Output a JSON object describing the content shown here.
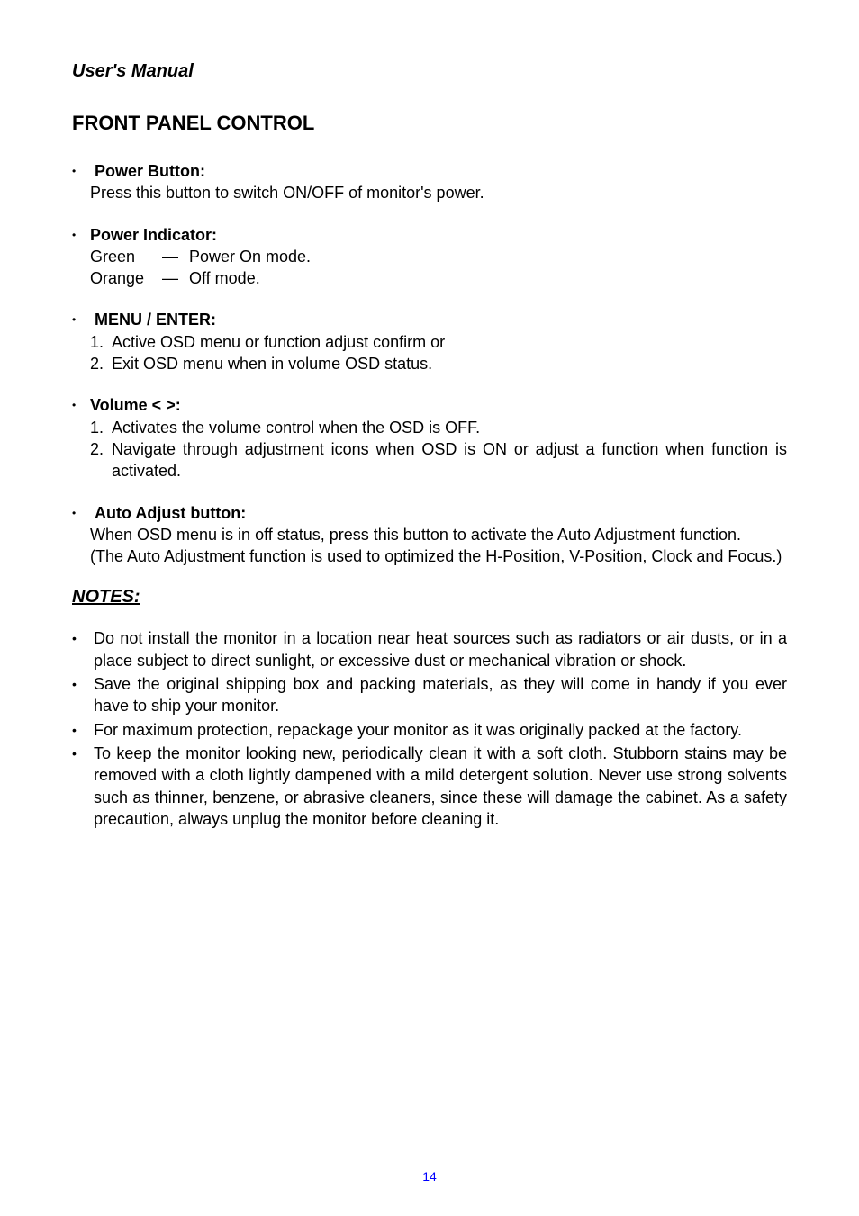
{
  "header": {
    "title": "User's Manual"
  },
  "section_title": "FRONT PANEL CONTROL",
  "items": [
    {
      "title": "Power Button:",
      "body_lines": [
        "Press this button to switch ON/OFF of monitor's power."
      ]
    },
    {
      "title": "Power Indicator:",
      "rows": [
        {
          "key": "Green",
          "dash": "—",
          "val": "Power On mode."
        },
        {
          "key": "Orange",
          "dash": "—",
          "val": "Off mode."
        }
      ]
    },
    {
      "title": "MENU / ENTER:",
      "numbered": [
        "Active OSD menu or function adjust confirm or",
        "Exit OSD menu when in volume OSD status."
      ]
    },
    {
      "title": "Volume < >:",
      "numbered": [
        "Activates the volume control when the OSD is OFF.",
        "Navigate through adjustment icons when OSD is ON or adjust a function when function is activated."
      ],
      "justify_second": true
    },
    {
      "title": "Auto Adjust button:",
      "body_lines": [
        "When OSD menu is in off status, press this button to activate the Auto Adjustment function.",
        "(The Auto Adjustment function is used to optimized the H-Position, V-Position, Clock and Focus.)"
      ],
      "justify": true
    }
  ],
  "notes": {
    "title": "NOTES:",
    "items": [
      "Do not install the monitor in a location near heat sources such as radiators or air dusts, or in a place subject to direct sunlight, or excessive dust or mechanical vibration or shock.",
      "Save the original shipping box and packing materials, as they will come in handy if you ever have to ship your monitor.",
      "For maximum protection, repackage your monitor as it was originally packed at the factory.",
      "To keep the monitor looking new, periodically clean it with a soft cloth. Stubborn stains may be removed with a cloth lightly dampened with a mild detergent solution. Never use strong solvents such as thinner, benzene, or abrasive cleaners, since these will damage the cabinet. As a safety precaution, always unplug the monitor before cleaning it."
    ]
  },
  "page_number": "14",
  "colors": {
    "text": "#000000",
    "page_number": "#0000ff",
    "background": "#ffffff"
  },
  "typography": {
    "body_fontsize": 18,
    "header_fontsize": 20,
    "section_title_fontsize": 22,
    "font_family": "Arial"
  }
}
